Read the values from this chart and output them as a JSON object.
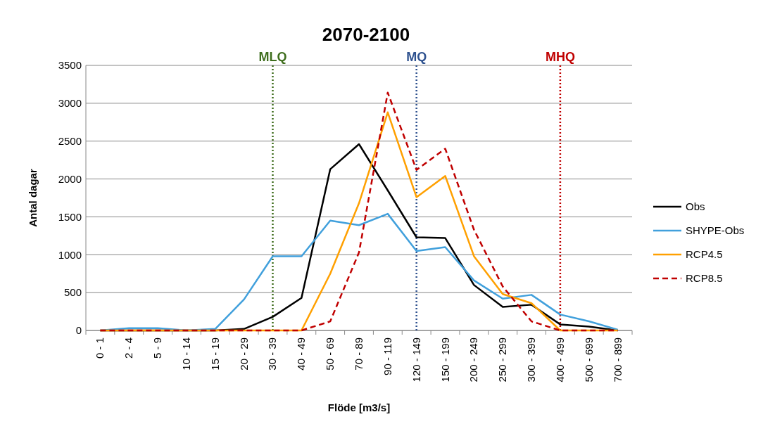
{
  "chart_data": {
    "type": "line",
    "title": "2070-2100",
    "xlabel": "Flöde [m3/s]",
    "ylabel": "Antal dagar",
    "categories": [
      "0 - 1",
      "2 - 4",
      "5 - 9",
      "10 - 14",
      "15 - 19",
      "20 - 29",
      "30 - 39",
      "40 - 49",
      "50 - 69",
      "70 - 89",
      "90 - 119",
      "120 - 149",
      "150 - 199",
      "200 - 249",
      "250 - 299",
      "300 - 399",
      "400 - 499",
      "500 - 699",
      "700 - 899"
    ],
    "series": [
      {
        "name": "Obs",
        "color": "#000000",
        "line_style": "solid",
        "values": [
          0,
          0,
          0,
          0,
          0,
          20,
          180,
          430,
          2130,
          2460,
          1850,
          1230,
          1220,
          600,
          310,
          340,
          80,
          50,
          0
        ]
      },
      {
        "name": "SHYPE-Obs",
        "color": "#41a0dc",
        "line_style": "solid",
        "values": [
          0,
          30,
          30,
          0,
          20,
          410,
          980,
          980,
          1450,
          1390,
          1540,
          1050,
          1100,
          660,
          420,
          470,
          210,
          120,
          10
        ]
      },
      {
        "name": "RCP4.5",
        "color": "#ffa000",
        "line_style": "solid",
        "values": [
          0,
          0,
          0,
          0,
          0,
          0,
          0,
          0,
          750,
          1680,
          2880,
          1760,
          2040,
          980,
          480,
          360,
          0,
          0,
          0
        ]
      },
      {
        "name": "RCP8.5",
        "color": "#c00000",
        "line_style": "dashed",
        "values": [
          0,
          0,
          0,
          0,
          0,
          0,
          0,
          0,
          120,
          1030,
          3140,
          2120,
          2400,
          1330,
          580,
          120,
          0,
          0,
          0
        ]
      }
    ],
    "ylim": [
      0,
      3500
    ],
    "yticks": [
      0,
      500,
      1000,
      1500,
      2000,
      2500,
      3000,
      3500
    ],
    "grid": "y",
    "legend": "right",
    "ref_lines": [
      {
        "axis": "x",
        "value": "30 - 39",
        "label": "MLQ",
        "color": "#3f6e1e",
        "line_style": "dotted"
      },
      {
        "axis": "x",
        "value": "120 - 149",
        "label": "MQ",
        "color": "#2f528f",
        "line_style": "dotted"
      },
      {
        "axis": "x",
        "value": "400 - 499",
        "label": "MHQ",
        "color": "#c00000",
        "line_style": "dotted"
      }
    ]
  }
}
